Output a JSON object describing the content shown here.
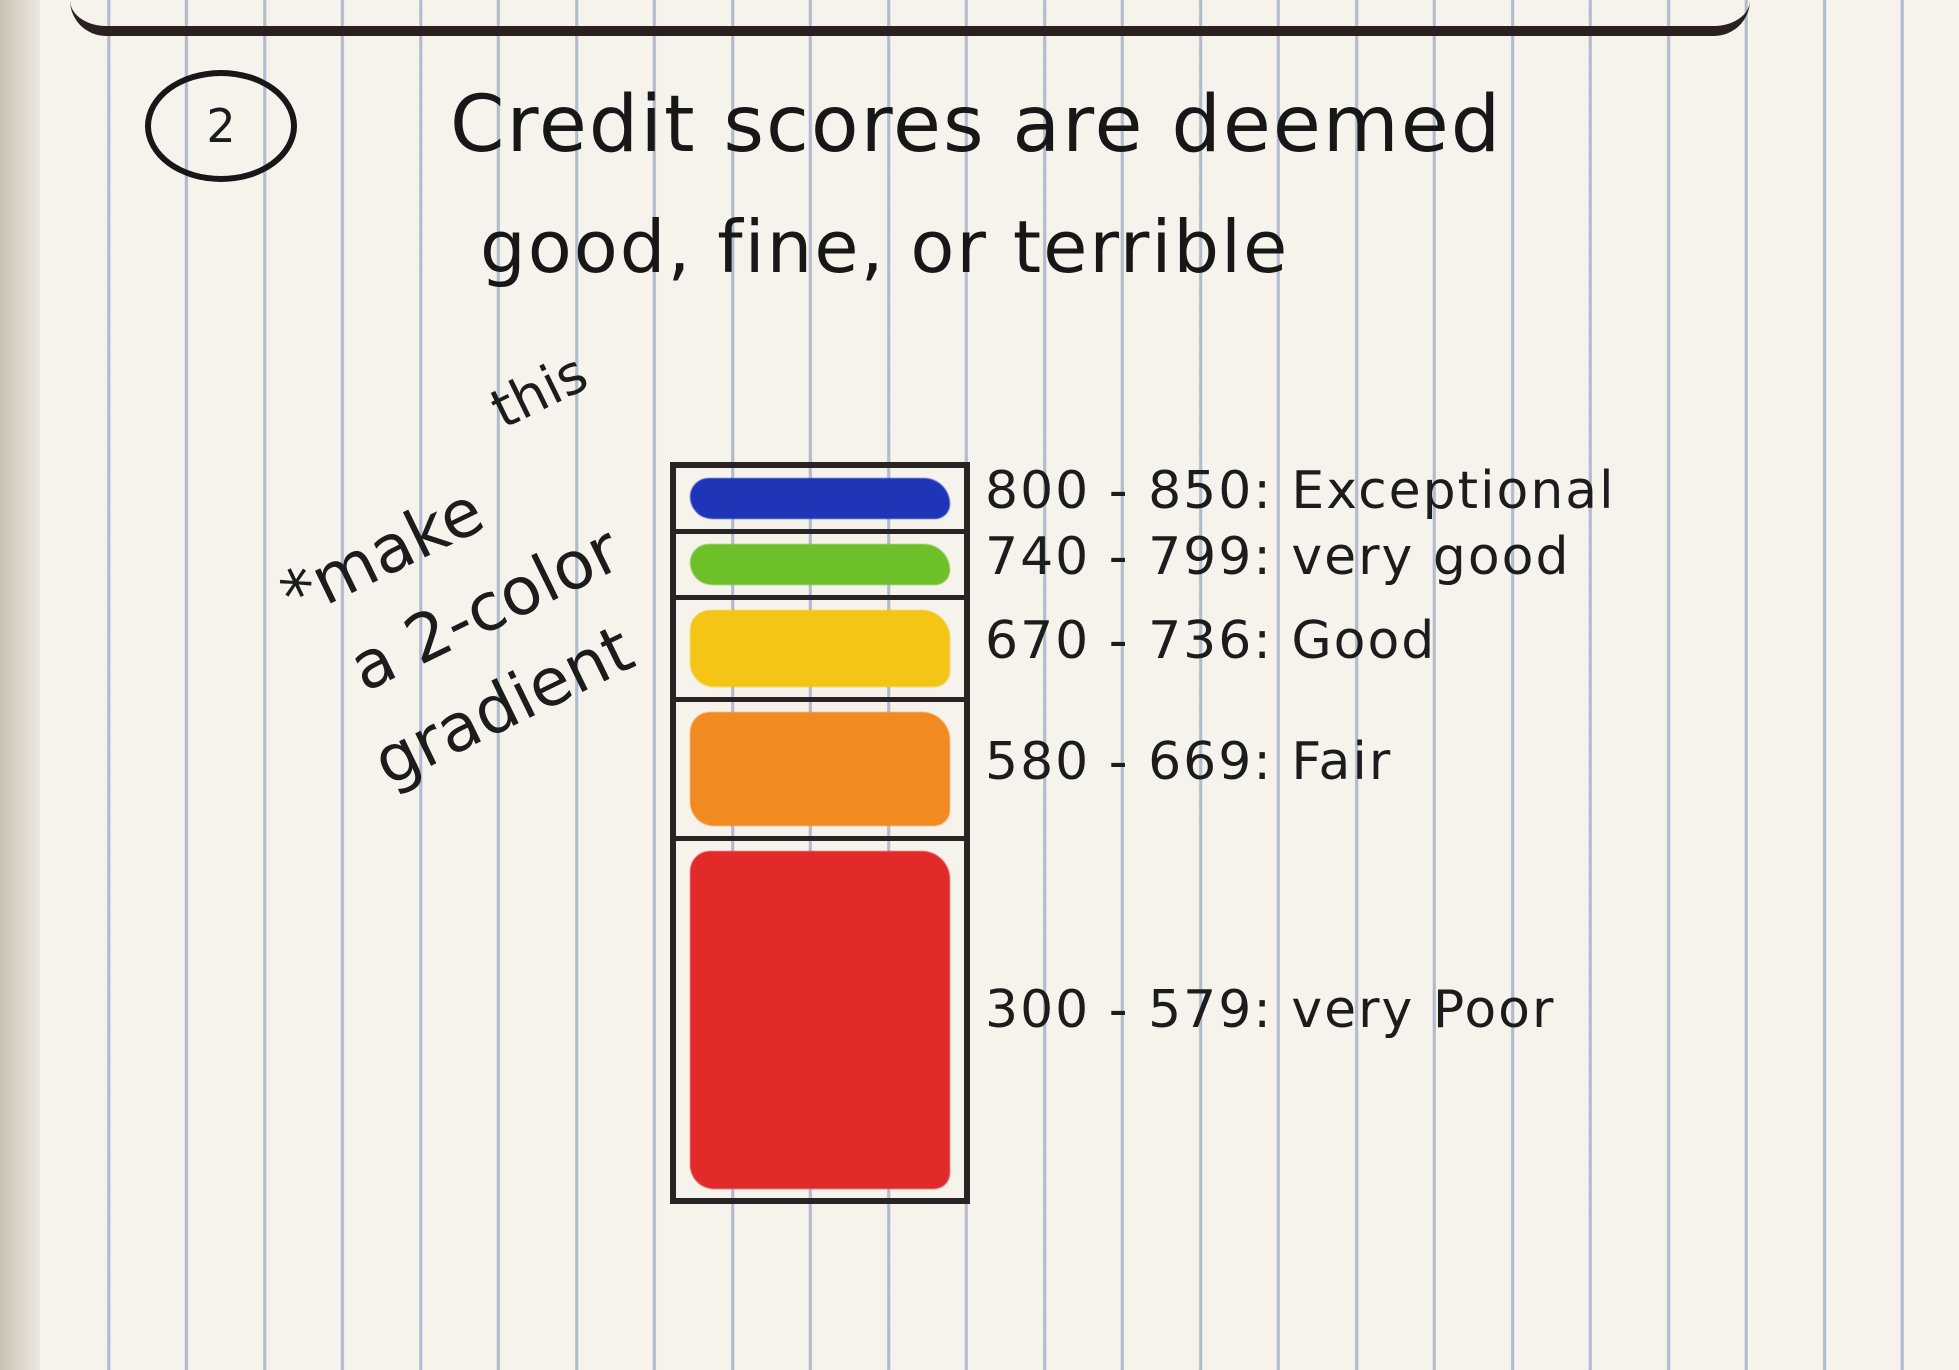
{
  "header": {
    "number": "2",
    "title_line1": "Credit scores are deemed",
    "title_line2": "good, fine, or terrible"
  },
  "note": {
    "lines": [
      "this",
      "*make",
      "a 2-color",
      "gradient"
    ]
  },
  "scale": {
    "bands": [
      {
        "range": "800 - 850",
        "label": "Exceptional",
        "color": "#1f35b8",
        "height_fraction": 0.09
      },
      {
        "range": "740 - 799",
        "label": "very good",
        "color": "#6ec02a",
        "height_fraction": 0.09
      },
      {
        "range": "670 - 736",
        "label": "Good",
        "color": "#f4c416",
        "height_fraction": 0.14
      },
      {
        "range": "580 - 669",
        "label": "Fair",
        "color": "#f28a22",
        "height_fraction": 0.19
      },
      {
        "range": "300 - 579",
        "label": "very Poor",
        "color": "#e22a2a",
        "height_fraction": 0.49
      }
    ]
  }
}
